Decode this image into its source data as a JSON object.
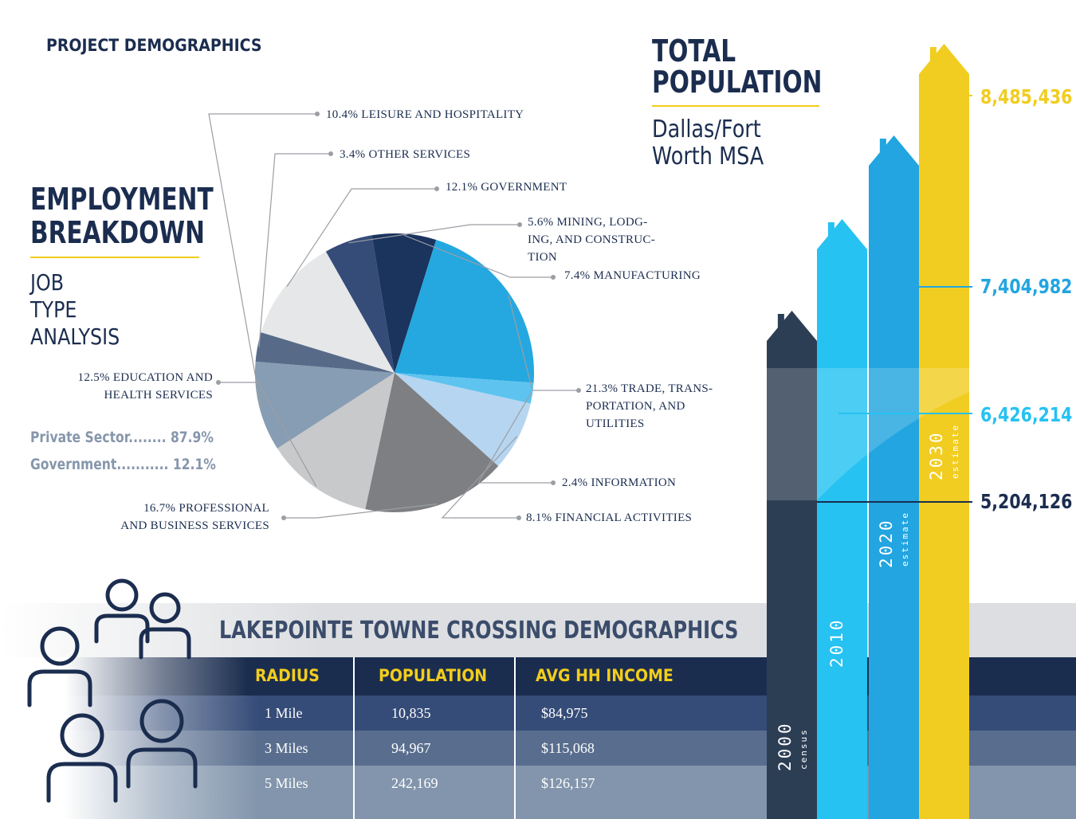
{
  "header": {
    "title": "PROJECT DEMOGRAPHICS"
  },
  "employment": {
    "title_line1": "EMPLOYMENT",
    "title_line2": "BREAKDOWN",
    "subtitle_lines": [
      "JOB",
      "TYPE",
      "ANALYSIS"
    ],
    "private_sector": "Private Sector........ 87.9%",
    "government": "Government........... 12.1%"
  },
  "chart_data": [
    {
      "type": "pie",
      "title": "EMPLOYMENT BREAKDOWN",
      "subtitle": "JOB TYPE ANALYSIS",
      "slices": [
        {
          "label": "5.6% MINING, LODGING, AND CONSTRUCTION",
          "label_lines": [
            "5.6% MINING, LODG-",
            "ING, AND CONSTRUC-",
            "TION"
          ],
          "value": 5.6,
          "color": "#354c78"
        },
        {
          "label": "7.4% MANUFACTURING",
          "label_lines": [
            "7.4% MANUFACTURING"
          ],
          "value": 7.4,
          "color": "#1a345e"
        },
        {
          "label": "21.3% TRADE, TRANSPORTATION, AND UTILITIES",
          "label_lines": [
            "21.3% TRADE, TRANS-",
            "PORTATION, AND",
            "UTILITIES"
          ],
          "value": 21.3,
          "color": "#25a8e0"
        },
        {
          "label": "2.4% INFORMATION",
          "label_lines": [
            "2.4% INFORMATION"
          ],
          "value": 2.4,
          "color": "#5ec3ef"
        },
        {
          "label": "8.1% FINANCIAL ACTIVITIES",
          "label_lines": [
            "8.1% FINANCIAL ACTIVITIES"
          ],
          "value": 8.1,
          "color": "#b6d5f0"
        },
        {
          "label": "16.7% PROFESSIONAL AND BUSINESS SERVICES",
          "label_lines": [
            "16.7% PROFESSIONAL",
            "AND BUSINESS SERVICES"
          ],
          "value": 16.7,
          "color": "#7e7f82"
        },
        {
          "label": "12.5% EDUCATION AND HEALTH SERVICES",
          "label_lines": [
            "12.5% EDUCATION AND",
            "HEALTH SERVICES"
          ],
          "value": 12.5,
          "color": "#c8c9cb"
        },
        {
          "label": "10.4% LEISURE AND HOSPITALITY",
          "label_lines": [
            "10.4% LEISURE AND HOSPITALITY"
          ],
          "value": 10.4,
          "color": "#879db3"
        },
        {
          "label": "3.4% OTHER SERVICES",
          "label_lines": [
            "3.4% OTHER SERVICES"
          ],
          "value": 3.4,
          "color": "#576b89"
        },
        {
          "label": "12.1% GOVERNMENT",
          "label_lines": [
            "12.1% GOVERNMENT"
          ],
          "value": 12.1,
          "color": "#e6e7e8"
        }
      ]
    },
    {
      "type": "bar",
      "title": "TOTAL POPULATION",
      "subtitle": "Dallas/Fort Worth MSA",
      "categories": [
        "2000",
        "2010",
        "2020",
        "2030"
      ],
      "category_notes": [
        "census",
        "",
        "estimate",
        "estimate"
      ],
      "values": [
        5204126,
        6426214,
        7404982,
        8485436
      ],
      "value_labels": [
        "5,204,126",
        "6,426,214",
        "7,404,982",
        "8,485,436"
      ],
      "colors": [
        "#2c3e54",
        "#25c2f2",
        "#22a5e0",
        "#f1cd21"
      ]
    }
  ],
  "population": {
    "title_line1": "TOTAL",
    "title_line2": "POPULATION",
    "subtitle_line1": "Dallas/Fort",
    "subtitle_line2": "Worth MSA"
  },
  "table": {
    "title": "LAKEPOINTE TOWNE CROSSING DEMOGRAPHICS",
    "headers": [
      "RADIUS",
      "POPULATION",
      "AVG HH INCOME"
    ],
    "rows": [
      [
        "1 Mile",
        "10,835",
        "$84,975"
      ],
      [
        "3 Miles",
        "94,967",
        "$115,068"
      ],
      [
        "5 Miles",
        "242,169",
        "$126,157"
      ]
    ]
  },
  "colors": {
    "navy": "#1b2d4f",
    "gold": "#f2cd1c",
    "accent_blue": "#25a8e0"
  }
}
